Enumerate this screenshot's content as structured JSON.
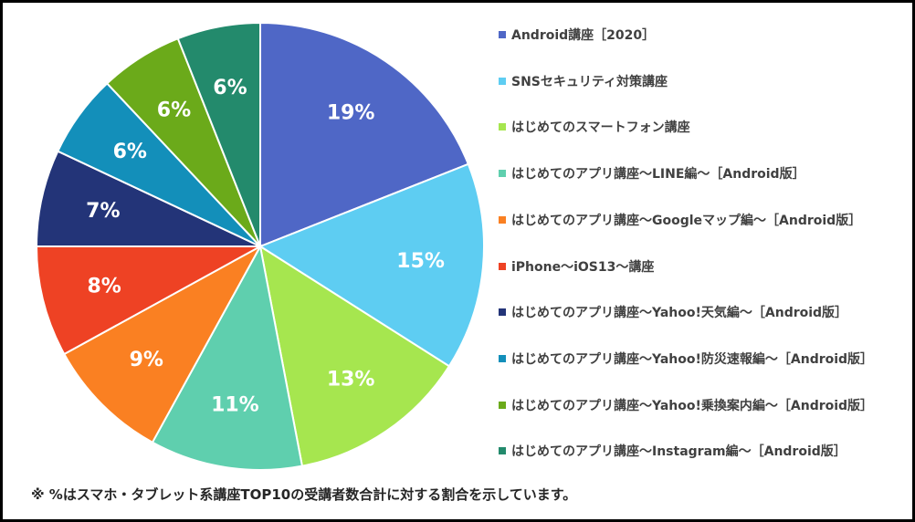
{
  "chart_data": {
    "type": "pie",
    "slices": [
      {
        "label": "Android講座［2020］",
        "value": 19,
        "display": "19%",
        "color": "#4F67C6"
      },
      {
        "label": "SNSセキュリティ対策講座",
        "value": 15,
        "display": "15%",
        "color": "#5ECDF2"
      },
      {
        "label": "はじめてのスマートフォン講座",
        "value": 13,
        "display": "13%",
        "color": "#A6E64F"
      },
      {
        "label": "はじめてのアプリ講座～LINE編～［Android版］",
        "value": 11,
        "display": "11%",
        "color": "#5FCFAE"
      },
      {
        "label": "はじめてのアプリ講座～Googleマップ編～［Android版］",
        "value": 9,
        "display": "9%",
        "color": "#FA8022"
      },
      {
        "label": "iPhone～iOS13～講座",
        "value": 8,
        "display": "8%",
        "color": "#EE4224"
      },
      {
        "label": "はじめてのアプリ講座～Yahoo!天気編～［Android版］",
        "value": 7,
        "display": "7%",
        "color": "#233478"
      },
      {
        "label": "はじめてのアプリ講座～Yahoo!防災速報編～［Android版］",
        "value": 6,
        "display": "6%",
        "color": "#138FBA"
      },
      {
        "label": "はじめてのアプリ講座～Yahoo!乗換案内編～［Android版］",
        "value": 6,
        "display": "6%",
        "color": "#6BAA1A"
      },
      {
        "label": "はじめてのアプリ講座～Instagram編～［Android版］",
        "value": 6,
        "display": "6%",
        "color": "#238A6C"
      }
    ],
    "legend_position": "right",
    "start_angle": "12 o'clock",
    "direction": "clockwise",
    "label_color": "#FFFFFF"
  },
  "footnote": "※ %はスマホ・タブレット系講座TOP10の受講者数合計に対する割合を示しています。"
}
